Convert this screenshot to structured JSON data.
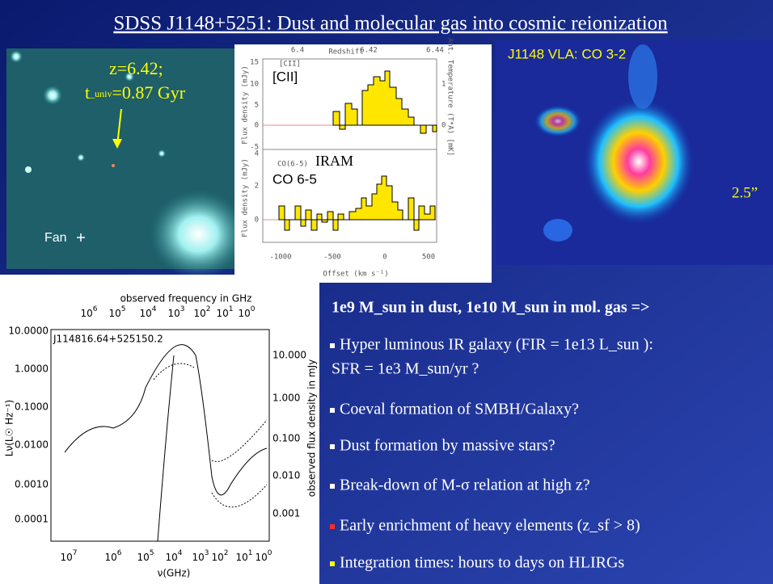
{
  "title": "SDSS J1148+5251: Dust and molecular gas into cosmic reionization",
  "optical_image": {
    "redshift": "z=6.42;",
    "age": {
      "t": "t",
      "sub": "_univ",
      "rest": "=0.87 Gyr"
    },
    "fan": "Fan"
  },
  "spectra": {
    "top_axis_label": "Redshift",
    "top_ticks": [
      "6.4",
      "6.42",
      "6.44"
    ],
    "upper": {
      "small_label": "[CII]",
      "label": "[CII]",
      "y_label": "Flux density (mJy)",
      "right_label": "Ant. Temperature (T*A) [mK]",
      "yticks": [
        "15",
        "10",
        "5",
        "0",
        "-5"
      ],
      "right_ticks": [
        "1",
        "0"
      ]
    },
    "lower": {
      "small_label": "CO(6-5)",
      "iram": "IRAM",
      "label": "CO 6-5",
      "y_label": "Flux density (mJy)",
      "yticks": [
        "4",
        "2",
        "0"
      ]
    },
    "xticks": [
      "-1000",
      "-500",
      "0",
      "500"
    ],
    "x_label": "Offset (km s⁻¹)"
  },
  "vla_image": {
    "label": "J1148  VLA: CO 3-2",
    "scale": "2.5”"
  },
  "sed": {
    "top_label": "observed frequency in GHz",
    "top_ticks": [
      {
        "base": "10",
        "exp": "6"
      },
      {
        "base": "10",
        "exp": "5"
      },
      {
        "base": "10",
        "exp": "4"
      },
      {
        "base": "10",
        "exp": "3"
      },
      {
        "base": "10",
        "exp": "2"
      },
      {
        "base": "10",
        "exp": "1"
      },
      {
        "base": "10",
        "exp": "0"
      }
    ],
    "object": "J114816.64+525150.2",
    "left_ticks": [
      "10.0000",
      "1.0000",
      "0.1000",
      "0.0100",
      "0.0010",
      "0.0001"
    ],
    "right_ticks": [
      "10.000",
      "1.000",
      "0.100",
      "0.010",
      "0.001"
    ],
    "y_label": "Lν(L☉ Hz⁻¹)",
    "right_label": "observed flux density in mJy",
    "bottom_ticks": [
      {
        "base": "10",
        "exp": "7"
      },
      {
        "base": "10",
        "exp": "6"
      },
      {
        "base": "10",
        "exp": "5"
      },
      {
        "base": "10",
        "exp": "4"
      },
      {
        "base": "10",
        "exp": "3"
      },
      {
        "base": "10",
        "exp": "2"
      },
      {
        "base": "10",
        "exp": "1"
      },
      {
        "base": "10",
        "exp": "0"
      }
    ],
    "x_label": "ν(GHz)"
  },
  "bullets": {
    "header": "1e9 M_sun in dust, 1e10 M_sun in mol. gas =>",
    "items": [
      [
        "Hyper luminous IR galaxy (FIR = 1e13 L_sun ):",
        "SFR  = 1e3 M_sun/yr ?"
      ],
      [
        "Coeval formation of SMBH/Galaxy?"
      ],
      [
        "Dust formation by massive stars?"
      ],
      [
        "Break-down of  M-σ relation at high z?"
      ],
      [
        "Early enrichment of heavy elements (z_sf > 8)"
      ],
      [
        "Integration times: hours to days on HLIRGs"
      ]
    ]
  }
}
